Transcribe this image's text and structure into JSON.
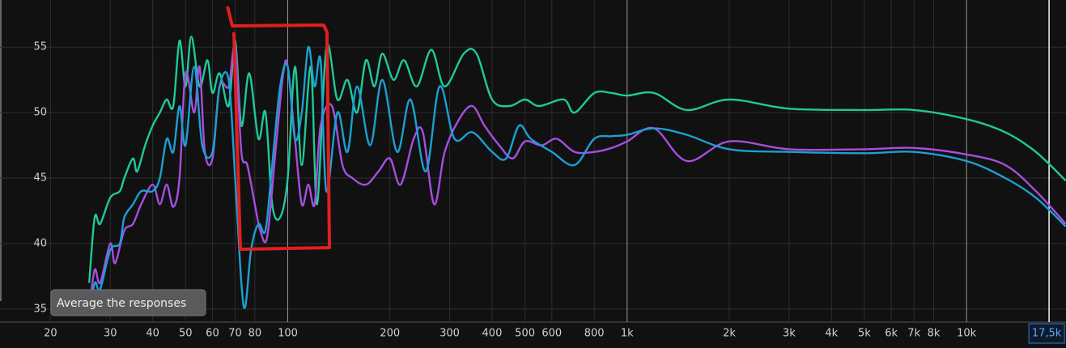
{
  "chart_data": {
    "type": "line",
    "log_x": true,
    "grid": true,
    "xlim": [
      14.2,
      19630
    ],
    "ylim": [
      34,
      58.6
    ],
    "yticks": [
      35,
      40,
      45,
      50,
      55
    ],
    "xticks": [
      20,
      30,
      40,
      50,
      60,
      70,
      80,
      100,
      200,
      300,
      400,
      500,
      600,
      800,
      {
        "value": 1000,
        "label": "1k"
      },
      {
        "value": 2000,
        "label": "2k"
      },
      {
        "value": 3000,
        "label": "3k"
      },
      {
        "value": 4000,
        "label": "4k"
      },
      {
        "value": 5000,
        "label": "5k"
      },
      {
        "value": 6000,
        "label": "6k"
      },
      {
        "value": 7000,
        "label": "7k"
      },
      {
        "value": 8000,
        "label": "8k"
      },
      {
        "value": 10000,
        "label": "10k"
      }
    ],
    "cursor": {
      "value": 17500,
      "label": "17,5k"
    },
    "tooltip": "Average the responses",
    "series": [
      {
        "color": "#1fc99a",
        "x": [
          26,
          27,
          28,
          30,
          32,
          33,
          35,
          36,
          38,
          40,
          42,
          44,
          46,
          48,
          50,
          52,
          55,
          58,
          60,
          63,
          67,
          70,
          73,
          77,
          82,
          86,
          90,
          95,
          100,
          105,
          110,
          117,
          122,
          130,
          140,
          150,
          160,
          170,
          180,
          190,
          205,
          220,
          240,
          265,
          290,
          330,
          360,
          400,
          450,
          500,
          550,
          650,
          700,
          800,
          900,
          1000,
          1200,
          1500,
          2000,
          3000,
          5000,
          7000,
          10000,
          13000,
          16000,
          19600
        ],
        "values": [
          37,
          42,
          41.5,
          43.5,
          44,
          45,
          46.5,
          45.5,
          47.5,
          49,
          50,
          51,
          50.5,
          55.5,
          52,
          55.8,
          52,
          54,
          51.5,
          53,
          50.5,
          55.5,
          49,
          53,
          48,
          50,
          43,
          42,
          45,
          53.5,
          46,
          53.5,
          43,
          55,
          51,
          52.5,
          50,
          54,
          52,
          54.5,
          52.5,
          54,
          52,
          54.8,
          52,
          54.5,
          54.5,
          51,
          50.5,
          51,
          50.5,
          51,
          50,
          51.5,
          51.5,
          51.3,
          51.5,
          50.2,
          51,
          50.3,
          50.2,
          50.2,
          49.5,
          48.5,
          47,
          44.8
        ]
      },
      {
        "color": "#a64ee0",
        "x": [
          26,
          27,
          28,
          30,
          31,
          33,
          35,
          37,
          40,
          42,
          44,
          46,
          48,
          50,
          53,
          55,
          57,
          60,
          63,
          67,
          70,
          73,
          76,
          80,
          83,
          87,
          92,
          97,
          100,
          105,
          110,
          115,
          120,
          125,
          135,
          145,
          155,
          170,
          185,
          200,
          215,
          235,
          250,
          270,
          290,
          320,
          350,
          380,
          420,
          460,
          500,
          560,
          620,
          700,
          800,
          900,
          1000,
          1200,
          1500,
          2000,
          3000,
          5000,
          7000,
          10000,
          13000,
          16000,
          19600
        ],
        "values": [
          35,
          38,
          37,
          40,
          38.5,
          41,
          41.5,
          43,
          44.5,
          43,
          44.5,
          42.8,
          45,
          53,
          50,
          53.5,
          47,
          46.5,
          52,
          52,
          55,
          47,
          46,
          43,
          41,
          40.5,
          47,
          53,
          53.5,
          48,
          43,
          44.5,
          43,
          49,
          50.5,
          46,
          45,
          44.5,
          45.5,
          46.5,
          44.5,
          48,
          48.5,
          43,
          47,
          49.5,
          50.5,
          49,
          47.5,
          46.5,
          47.8,
          47.5,
          48,
          47,
          47,
          47.3,
          47.8,
          48.8,
          46.3,
          47.8,
          47.2,
          47.2,
          47.3,
          46.8,
          46,
          44,
          41.5
        ]
      },
      {
        "color": "#1ba0d2",
        "x": [
          26,
          27,
          28,
          30,
          32,
          33,
          35,
          37,
          40,
          42,
          44,
          46,
          48,
          50,
          53,
          56,
          60,
          63,
          67,
          70,
          73,
          75,
          78,
          82,
          86,
          90,
          95,
          100,
          105,
          110,
          115,
          120,
          125,
          130,
          140,
          150,
          160,
          175,
          190,
          210,
          230,
          255,
          280,
          310,
          350,
          400,
          440,
          480,
          520,
          600,
          700,
          800,
          900,
          1000,
          1200,
          1500,
          2000,
          3000,
          5000,
          7000,
          10000,
          13000,
          16000,
          19600
        ],
        "values": [
          34.5,
          37,
          36.5,
          39.5,
          40,
          42,
          43,
          44,
          44,
          45,
          48,
          47,
          50.5,
          47.5,
          53.5,
          47.5,
          47,
          52,
          52.5,
          45,
          37,
          35.2,
          39.5,
          41.5,
          41,
          46,
          52,
          53.5,
          48,
          50,
          55,
          52,
          54,
          44,
          50,
          47,
          52,
          47.5,
          52.5,
          47,
          51,
          45.5,
          52,
          48,
          48.5,
          47,
          46.5,
          49,
          48,
          47,
          46,
          48,
          48.2,
          48.3,
          48.8,
          48.3,
          47.2,
          47,
          46.9,
          47,
          46.3,
          45,
          43.5,
          41.3
        ]
      }
    ]
  }
}
